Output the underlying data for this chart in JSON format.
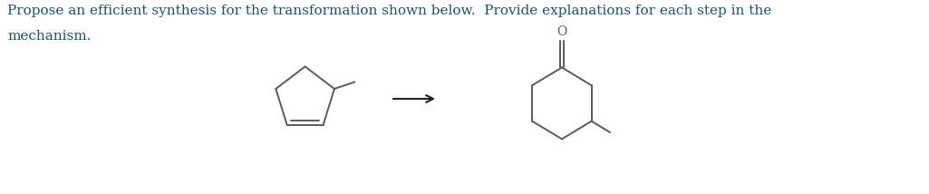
{
  "title_text": "Propose an efficient synthesis for the transformation shown below.  Provide explanations for each step in the",
  "title_line2": "mechanism.",
  "text_color": "#1a5276",
  "bg_color": "#ffffff",
  "font_size_title": 11.0,
  "line_color": "#5a5a5a",
  "arrow_color": "#222222",
  "fig_width": 10.25,
  "fig_height": 2.14,
  "dpi": 100,
  "lw": 1.4
}
